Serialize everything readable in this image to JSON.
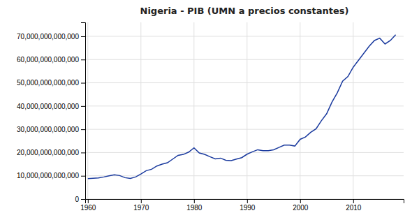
{
  "chart_data": {
    "type": "line",
    "title": "Nigeria - PIB (UMN a precios constantes)",
    "x": [
      1960,
      1961,
      1962,
      1963,
      1964,
      1965,
      1966,
      1967,
      1968,
      1969,
      1970,
      1971,
      1972,
      1973,
      1974,
      1975,
      1976,
      1977,
      1978,
      1979,
      1980,
      1981,
      1982,
      1983,
      1984,
      1985,
      1986,
      1987,
      1988,
      1989,
      1990,
      1991,
      1992,
      1993,
      1994,
      1995,
      1996,
      1997,
      1998,
      1999,
      2000,
      2001,
      2002,
      2003,
      2004,
      2005,
      2006,
      2007,
      2008,
      2009,
      2010,
      2011,
      2012,
      2013,
      2014,
      2015,
      2016,
      2017,
      2018
    ],
    "values": [
      8800000000000,
      8950000000000,
      9100000000000,
      9500000000000,
      10000000000000,
      10400000000000,
      10100000000000,
      9200000000000,
      8900000000000,
      9500000000000,
      10800000000000,
      12200000000000,
      12800000000000,
      14200000000000,
      15000000000000,
      15600000000000,
      17200000000000,
      18800000000000,
      19200000000000,
      20200000000000,
      22000000000000,
      19800000000000,
      19200000000000,
      18200000000000,
      17300000000000,
      17600000000000,
      16700000000000,
      16500000000000,
      17200000000000,
      17800000000000,
      19300000000000,
      20300000000000,
      21200000000000,
      20800000000000,
      20800000000000,
      21200000000000,
      22200000000000,
      23200000000000,
      23200000000000,
      22800000000000,
      25700000000000,
      26700000000000,
      28700000000000,
      30200000000000,
      33700000000000,
      36700000000000,
      41700000000000,
      45700000000000,
      50700000000000,
      52700000000000,
      56700000000000,
      59700000000000,
      62700000000000,
      65700000000000,
      68200000000000,
      69200000000000,
      66700000000000,
      68200000000000,
      70700000000000
    ],
    "color": "#1a3a9e",
    "xlim": [
      1959.5,
      2019.5
    ],
    "ylim": [
      0,
      76000000000000
    ],
    "xticks": [
      1960,
      1970,
      1980,
      1990,
      2000,
      2010
    ],
    "yticks": [
      0,
      {
        "value": 10000000000000,
        "label": "10,000,000,000,000"
      },
      {
        "value": 20000000000000,
        "label": "20,000,000,000,000"
      },
      {
        "value": 30000000000000,
        "label": "30,000,000,000,000"
      },
      {
        "value": 40000000000000,
        "label": "40,000,000,000,000"
      },
      {
        "value": 50000000000000,
        "label": "50,000,000,000,000"
      },
      {
        "value": 60000000000000,
        "label": "60,000,000,000,000"
      },
      {
        "value": 70000000000000,
        "label": "70,000,000,000,000"
      }
    ],
    "grid": true
  }
}
